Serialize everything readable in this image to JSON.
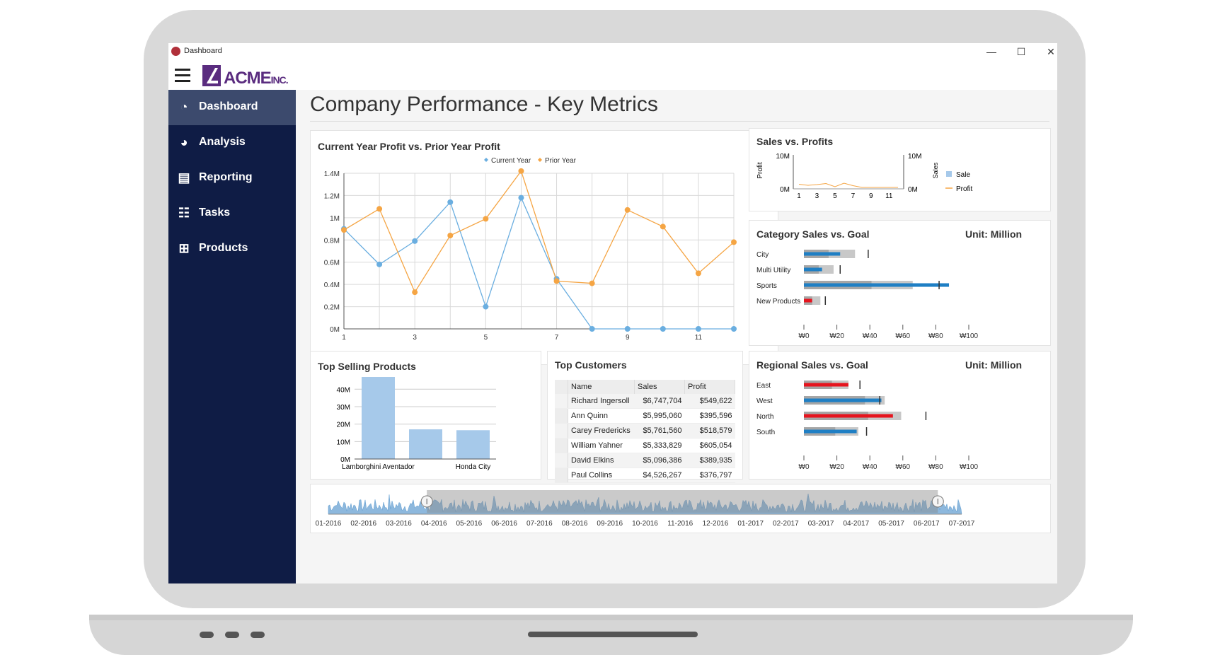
{
  "window": {
    "title": "Dashboard",
    "minimize": "—",
    "maximize": "☐",
    "close": "✕"
  },
  "brand": {
    "name": "ACME",
    "suffix": "INC."
  },
  "sidebar": {
    "items": [
      {
        "label": "Dashboard",
        "icon": "speedometer-icon",
        "active": true
      },
      {
        "label": "Analysis",
        "icon": "pie-chart-icon",
        "active": false
      },
      {
        "label": "Reporting",
        "icon": "report-icon",
        "active": false
      },
      {
        "label": "Tasks",
        "icon": "clipboard-icon",
        "active": false
      },
      {
        "label": "Products",
        "icon": "boxes-icon",
        "active": false
      }
    ]
  },
  "page": {
    "title": "Company Performance - Key Metrics"
  },
  "colors": {
    "current": "#6aaee0",
    "prior": "#f5a544",
    "bar": "#a6c9ea",
    "blue": "#1f7fc4",
    "red": "#e6141e",
    "grey": "#a6a6a6",
    "sidebar": "#0f1c45"
  },
  "chart_data": [
    {
      "type": "line",
      "title": "Current Year Profit vs. Prior Year Profit",
      "x": [
        1,
        2,
        3,
        4,
        5,
        6,
        7,
        8,
        9,
        10,
        11,
        12
      ],
      "xticks": [
        "1",
        "3",
        "5",
        "7",
        "9",
        "11"
      ],
      "yticks": [
        "0M",
        "0.2M",
        "0.4M",
        "0.6M",
        "0.8M",
        "1M",
        "1.2M",
        "1.4M"
      ],
      "ylim": [
        0,
        1400000
      ],
      "series": [
        {
          "name": "Current Year",
          "values": [
            900000,
            580000,
            790000,
            1140000,
            200000,
            1180000,
            450000,
            0,
            0,
            0,
            0,
            0
          ]
        },
        {
          "name": "Prior Year",
          "values": [
            890000,
            1080000,
            330000,
            840000,
            990000,
            1420000,
            430000,
            410000,
            1070000,
            920000,
            500000,
            780000
          ]
        }
      ],
      "legend": "top"
    },
    {
      "type": "line",
      "title": "Sales vs. Profits",
      "ylabel": "Profit",
      "y2label": "Sales",
      "yticks": [
        "0M",
        "10M"
      ],
      "y2ticks": [
        "0M",
        "10M"
      ],
      "xticks": [
        "1",
        "3",
        "5",
        "7",
        "9",
        "11"
      ],
      "series": [
        {
          "name": "Sale",
          "values": []
        },
        {
          "name": "Profit",
          "values": [
            0.9,
            0.6,
            0.8,
            1.1,
            0.2,
            1.2,
            0.5,
            0,
            0,
            0,
            0,
            0
          ]
        }
      ]
    },
    {
      "type": "bar",
      "title": "Category Sales vs. Goal",
      "unit": "Unit: Million",
      "categories": [
        "City",
        "Multi Utility",
        "Sports",
        "New Products"
      ],
      "values": [
        22,
        11,
        88,
        5
      ],
      "ranges": [
        [
          15,
          31
        ],
        [
          9,
          18
        ],
        [
          41,
          66
        ],
        [
          5,
          10
        ]
      ],
      "targets": [
        39,
        22,
        82,
        13
      ],
      "bar_colors": [
        "blue",
        "blue",
        "blue",
        "red"
      ],
      "xticks": [
        "₩0",
        "₩20",
        "₩40",
        "₩60",
        "₩80",
        "₩100"
      ],
      "xlim": [
        0,
        100
      ]
    },
    {
      "type": "bar",
      "title": "Top Selling Products",
      "categories": [
        "Lamborghini Aventador",
        "",
        "Honda City"
      ],
      "values": [
        47000000,
        17000000,
        16500000
      ],
      "yticks": [
        "0M",
        "10M",
        "20M",
        "30M",
        "40M"
      ],
      "ylim": [
        0,
        47000000
      ]
    },
    {
      "type": "table",
      "title": "Top Customers",
      "columns": [
        "Name",
        "Sales",
        "Profit"
      ],
      "rows": [
        [
          "Richard Ingersoll",
          "$6,747,704",
          "$549,622"
        ],
        [
          "Ann Quinn",
          "$5,995,060",
          "$395,596"
        ],
        [
          "Carey Fredericks",
          "$5,761,560",
          "$518,579"
        ],
        [
          "William Yahner",
          "$5,333,829",
          "$605,054"
        ],
        [
          "David Elkins",
          "$5,096,386",
          "$389,935"
        ],
        [
          "Paul Collins",
          "$4,526,267",
          "$376,797"
        ]
      ]
    },
    {
      "type": "bar",
      "title": "Regional Sales vs. Goal",
      "unit": "Unit: Million",
      "categories": [
        "East",
        "West",
        "North",
        "South"
      ],
      "values": [
        27,
        47,
        54,
        32
      ],
      "ranges": [
        [
          17,
          27
        ],
        [
          37,
          49
        ],
        [
          39,
          59
        ],
        [
          19,
          33
        ]
      ],
      "targets": [
        34,
        46,
        74,
        38
      ],
      "bar_colors": [
        "red",
        "blue",
        "red",
        "blue"
      ],
      "xticks": [
        "₩0",
        "₩20",
        "₩40",
        "₩60",
        "₩80",
        "₩100"
      ],
      "xlim": [
        0,
        100
      ]
    },
    {
      "type": "area",
      "title": "",
      "xticks": [
        "01-2016",
        "02-2016",
        "03-2016",
        "04-2016",
        "05-2016",
        "06-2016",
        "07-2016",
        "08-2016",
        "09-2016",
        "10-2016",
        "11-2016",
        "12-2016",
        "01-2017",
        "02-2017",
        "03-2017",
        "04-2017",
        "05-2017",
        "06-2017",
        "07-2017"
      ],
      "selection": [
        "04-2016",
        "06-2017"
      ]
    }
  ]
}
